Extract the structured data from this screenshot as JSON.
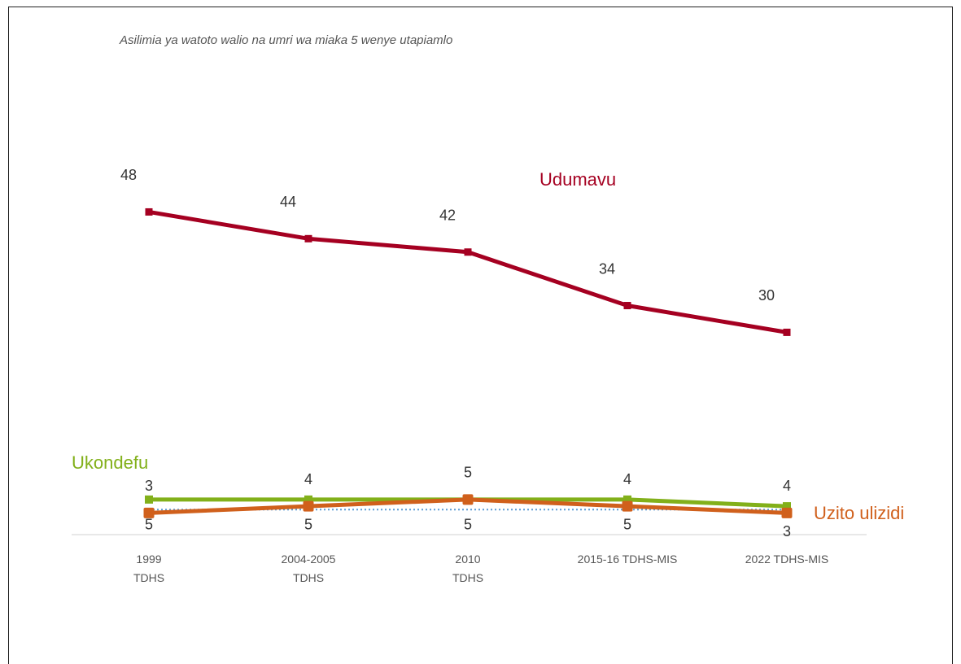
{
  "chart_data": {
    "type": "line",
    "title": "Asilimia ya watoto walio na umri wa miaka 5 wenye utapiamlo",
    "categories": [
      [
        "1999",
        "TDHS"
      ],
      [
        "2004-2005",
        "TDHS"
      ],
      [
        "2010",
        "TDHS"
      ],
      [
        "2015-16 TDHS-MIS"
      ],
      [
        "2022 TDHS-MIS"
      ]
    ],
    "ylim": [
      0,
      50
    ],
    "series": [
      {
        "name": "Udumavu",
        "color": "#a50021",
        "values": [
          48,
          44,
          42,
          34,
          30
        ],
        "label_side": "above"
      },
      {
        "name": "Ukondefu",
        "color": "#82b01a",
        "values": [
          5,
          5,
          5,
          5,
          4
        ],
        "label_side": "below"
      },
      {
        "color": "#5b9bd5",
        "values": [
          3.5,
          3.5,
          3.5,
          3.5,
          3.5
        ],
        "dotted": true
      },
      {
        "name": "Uzito ulizidi",
        "color": "#d0601c",
        "values": [
          3,
          4,
          5,
          4,
          3
        ],
        "label_side": "above"
      }
    ]
  }
}
